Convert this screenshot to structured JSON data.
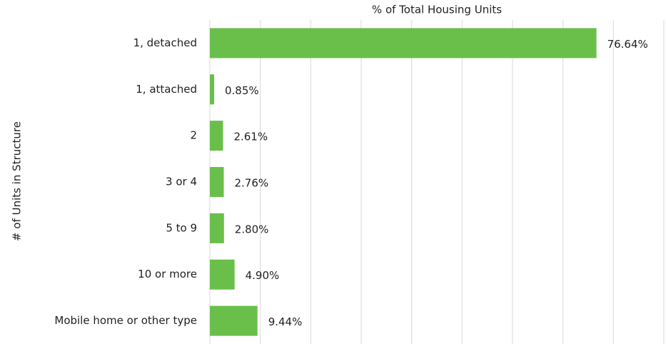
{
  "chart_data": {
    "type": "hbar",
    "title": "% of Total Housing Units",
    "y_label": "# of Units in Structure",
    "categories": [
      "1, detached",
      "1, attached",
      "2",
      "3 or 4",
      "5 to 9",
      "10 or more",
      "Mobile home or other type"
    ],
    "values": [
      76.64,
      0.85,
      2.61,
      2.76,
      2.8,
      4.9,
      9.44
    ],
    "value_labels": [
      "76.64%",
      "0.85%",
      "2.61%",
      "2.76%",
      "2.80%",
      "4.90%",
      "9.44%"
    ],
    "color": "#6abf4b",
    "xlim": [
      0,
      90
    ],
    "xticks": [
      0,
      10,
      20,
      30,
      40,
      50,
      60,
      70,
      80,
      90
    ],
    "grid": true
  }
}
